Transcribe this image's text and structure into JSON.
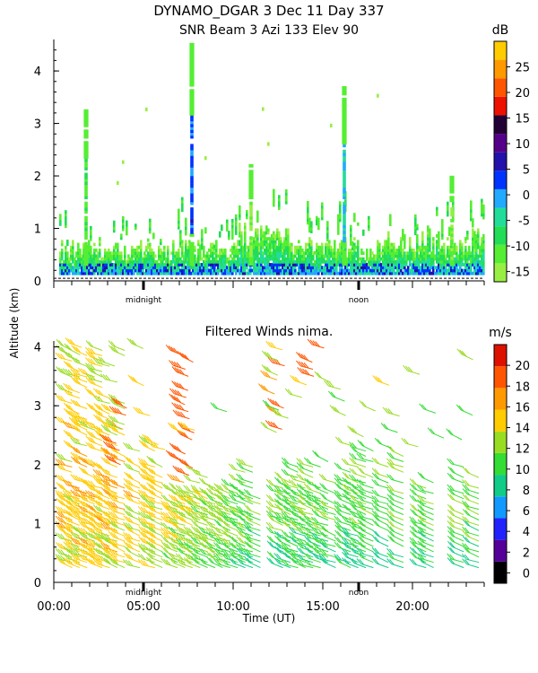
{
  "header": {
    "title": "DYNAMO_DGAR    3 Dec 11 Day 337",
    "subtitle": "SNR Beam 3 Azi 133 Elev 90"
  },
  "colors": {
    "snr_scale": [
      "#99ee44",
      "#55ee33",
      "#22dd55",
      "#22dd99",
      "#22aaff",
      "#0033ff",
      "#2211aa",
      "#550088",
      "#220033",
      "#ee1100",
      "#ff5500",
      "#ff9900",
      "#ffcc00"
    ],
    "wind_scale": [
      "#000000",
      "#550099",
      "#2222ff",
      "#1199ff",
      "#11cc88",
      "#33dd33",
      "#99dd22",
      "#ffcc00",
      "#ff9900",
      "#ff5500",
      "#dd1100"
    ]
  },
  "chart_data": [
    {
      "type": "heatmap",
      "name": "snr",
      "title": "SNR Beam 3 Azi 133 Elev 90",
      "xlabel": "",
      "ylabel": "Altitude (km)",
      "xlim": [
        0,
        24
      ],
      "ylim": [
        0,
        4.6
      ],
      "y_ticks": [
        "0",
        "1",
        "2",
        "3",
        "4"
      ],
      "x_annotations": [
        "midnight",
        "noon"
      ],
      "colorbar": {
        "unit": "dB",
        "range": [
          -17,
          30
        ],
        "ticks": [
          "-15",
          "-10",
          "-5",
          "0",
          "5",
          "10",
          "15",
          "20",
          "25"
        ]
      },
      "columns": [
        {
          "t": 1.8,
          "top": 3.3,
          "v": -8
        },
        {
          "t": 7.7,
          "top": 4.5,
          "v": 5
        },
        {
          "t": 11.0,
          "top": 2.2,
          "v": -12
        },
        {
          "t": 16.2,
          "top": 3.7,
          "v": 0
        },
        {
          "t": 22.2,
          "top": 2.0,
          "v": -12
        }
      ]
    },
    {
      "type": "wind_barbs",
      "name": "winds",
      "title": "Filtered Winds nima.",
      "xlabel": "Time (UT)",
      "ylabel": "Altitude (km)",
      "xlim": [
        0,
        24
      ],
      "ylim": [
        0,
        4.1
      ],
      "x_ticks": [
        "00:00",
        "05:00",
        "10:00",
        "15:00",
        "20:00"
      ],
      "y_ticks": [
        "0",
        "1",
        "2",
        "3",
        "4"
      ],
      "x_annotations": [
        "midnight",
        "noon"
      ],
      "colorbar": {
        "unit": "m/s",
        "range": [
          -1,
          22
        ],
        "ticks": [
          "0",
          "2",
          "4",
          "6",
          "8",
          "10",
          "12",
          "14",
          "16",
          "18",
          "20"
        ]
      },
      "speed_profile": [
        {
          "alt": 0.3,
          "early": 14,
          "late": 9
        },
        {
          "alt": 1.0,
          "early": 15,
          "late": 11
        },
        {
          "alt": 2.0,
          "early": 15,
          "late": 11
        },
        {
          "alt": 3.0,
          "early": 14,
          "late": 12
        },
        {
          "alt": 4.0,
          "early": 13,
          "late": 14
        }
      ],
      "jet": [
        {
          "t": 7.5,
          "alt_min": 1.7,
          "alt_max": 4.1,
          "speed": 19
        },
        {
          "t": 12.5,
          "alt_min": 2.6,
          "alt_max": 3.7,
          "speed": 18
        },
        {
          "t": 14.7,
          "alt_min": 3.5,
          "alt_max": 4.0,
          "speed": 19
        },
        {
          "t": 3.8,
          "alt_min": 2.0,
          "alt_max": 3.0,
          "speed": 18
        }
      ]
    }
  ]
}
